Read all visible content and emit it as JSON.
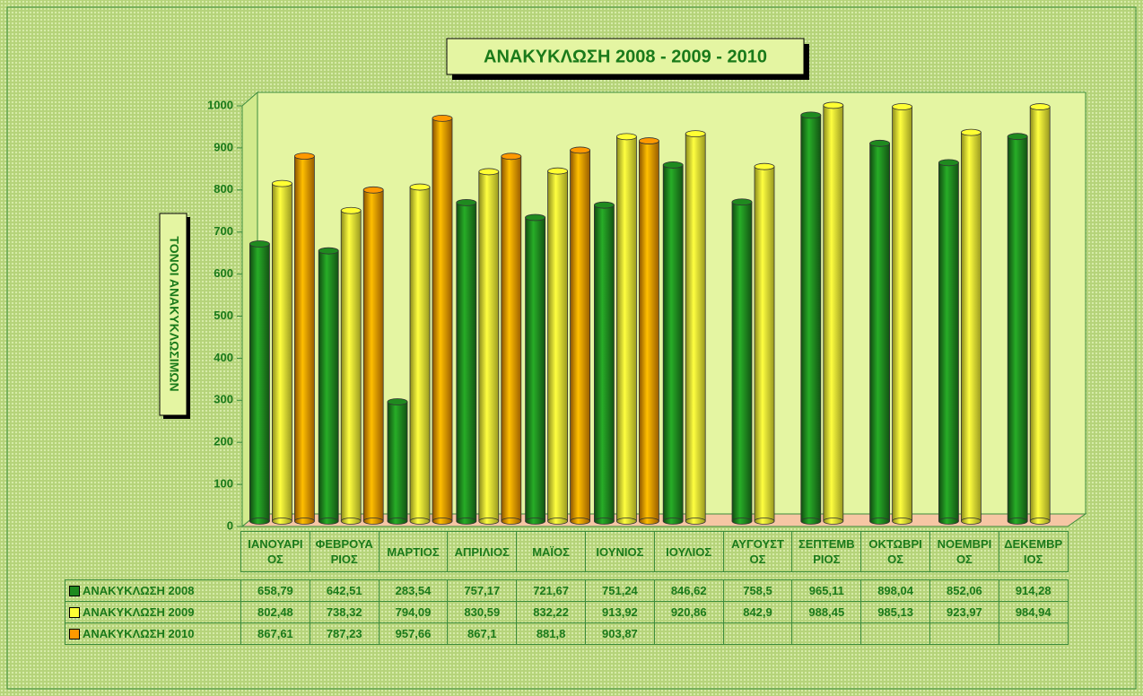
{
  "chart_data": {
    "type": "bar3d",
    "title": "ΑΝΑΚΥΚΛΩΣΗ 2008 - 2009 - 2010",
    "y_label": "ΤΟΝΟΙ ΑΝΑΚΥΚΛΩΣΙΜΩΝ",
    "categories": [
      "ΙΑΝΟΥΑΡΙΟΣ",
      "ΦΕΒΡΟΥΑΡΙΟΣ",
      "ΜΑΡΤΙΟΣ",
      "ΑΠΡΙΛΙΟΣ",
      "ΜΑΪΟΣ",
      "ΙΟΥΝΙΟΣ",
      "ΙΟΥΛΙΟΣ",
      "ΑΥΓΟΥΣΤΟΣ",
      "ΣΕΠΤΕΜΒΡΙΟΣ",
      "ΟΚΤΩΒΡΙΟΣ",
      "ΝΟΕΜΒΡΙΟΣ",
      "ΔΕΚΕΜΒΡΙΟΣ"
    ],
    "series": [
      {
        "name": "ΑΝΑΚΥΚΛΩΣΗ 2008",
        "color": "#1f8a1f",
        "values": [
          658.79,
          642.51,
          283.54,
          757.17,
          721.67,
          751.24,
          846.62,
          758.5,
          965.11,
          898.04,
          852.06,
          914.28
        ],
        "value_labels": [
          "658,79",
          "642,51",
          "283,54",
          "757,17",
          "721,67",
          "751,24",
          "846,62",
          "758,5",
          "965,11",
          "898,04",
          "852,06",
          "914,28"
        ]
      },
      {
        "name": "ΑΝΑΚΥΚΛΩΣΗ 2009",
        "color": "#ffff33",
        "values": [
          802.48,
          738.32,
          794.09,
          830.59,
          832.22,
          913.92,
          920.86,
          842.9,
          988.45,
          985.13,
          923.97,
          984.94
        ],
        "value_labels": [
          "802,48",
          "738,32",
          "794,09",
          "830,59",
          "832,22",
          "913,92",
          "920,86",
          "842,9",
          "988,45",
          "985,13",
          "923,97",
          "984,94"
        ]
      },
      {
        "name": "ΑΝΑΚΥΚΛΩΣΗ 2010",
        "color": "#ff9900",
        "values": [
          867.61,
          787.23,
          957.66,
          867.1,
          881.8,
          903.87,
          null,
          null,
          null,
          null,
          null,
          null
        ],
        "value_labels": [
          "867,61",
          "787,23",
          "957,66",
          "867,1",
          "881,8",
          "903,87",
          null,
          null,
          null,
          null,
          null,
          null
        ]
      }
    ],
    "ylim": [
      0,
      1000
    ],
    "yticks": [
      0,
      100,
      200,
      300,
      400,
      500,
      600,
      700,
      800,
      900,
      1000
    ],
    "grid": false
  }
}
